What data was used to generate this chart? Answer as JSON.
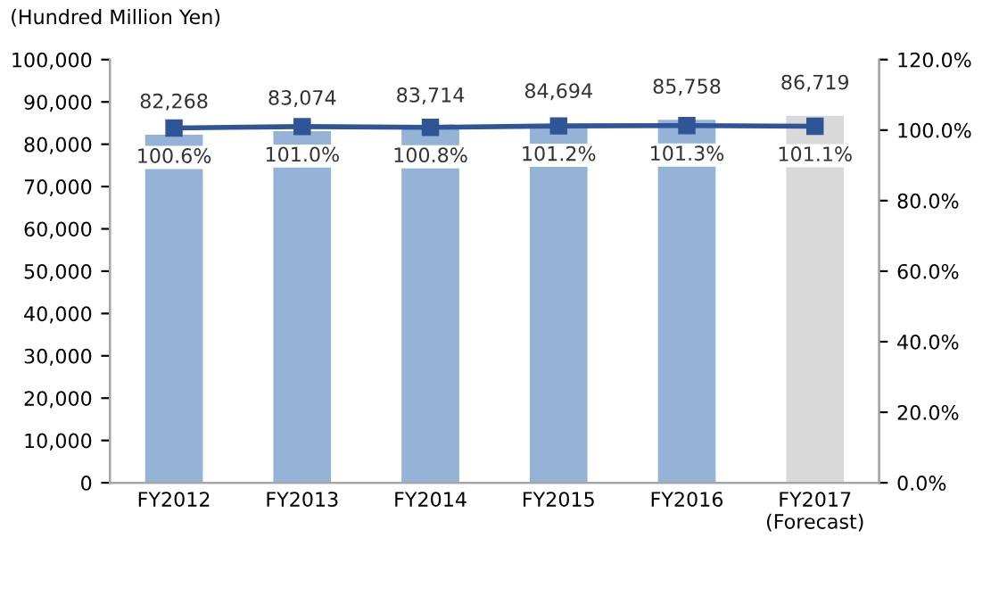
{
  "chart_data": {
    "type": "bar",
    "ylabel": "(Hundred Million Yen)",
    "categories": [
      "FY2012",
      "FY2013",
      "FY2014",
      "FY2015",
      "FY2016",
      "FY2017\n(Forecast)"
    ],
    "series": [
      {
        "colors": [
          "#95b3d7",
          "#95b3d7",
          "#95b3d7",
          "#95b3d7",
          "#95b3d7",
          "#d9d9d9"
        ],
        "values": [
          82268,
          83074,
          83714,
          84694,
          85758,
          86719
        ],
        "value_labels": [
          "82,268",
          "83,074",
          "83,714",
          "84,694",
          "85,758",
          "86,719"
        ]
      },
      {
        "type": "line",
        "axis": "y2",
        "color": "#2f5597",
        "values": [
          100.6,
          101.0,
          100.8,
          101.2,
          101.3,
          101.1
        ],
        "value_labels": [
          "100.6%",
          "101.0%",
          "100.8%",
          "101.2%",
          "101.3%",
          "101.1%"
        ],
        "marker": "square"
      }
    ],
    "ylim": [
      0,
      100000
    ],
    "yticks": [
      0,
      {
        "value": 10000,
        "label": "10,000"
      },
      {
        "value": 20000,
        "label": "20,000"
      },
      {
        "value": 30000,
        "label": "30,000"
      },
      {
        "value": 40000,
        "label": "40,000"
      },
      {
        "value": 50000,
        "label": "50,000"
      },
      {
        "value": 60000,
        "label": "60,000"
      },
      {
        "value": 70000,
        "label": "70,000"
      },
      {
        "value": 80000,
        "label": "80,000"
      },
      {
        "value": 90000,
        "label": "90,000"
      },
      {
        "value": 100000,
        "label": "100,000"
      }
    ],
    "y2lim": [
      0,
      120
    ],
    "y2ticks": [
      {
        "value": 0,
        "label": "0.0%"
      },
      {
        "value": 20,
        "label": "20.0%"
      },
      {
        "value": 40,
        "label": "40.0%"
      },
      {
        "value": 60,
        "label": "60.0%"
      },
      {
        "value": 80,
        "label": "80.0%"
      },
      {
        "value": 100,
        "label": "100.0%"
      },
      {
        "value": 120,
        "label": "120.0%"
      }
    ],
    "grid": false,
    "legend": false
  }
}
